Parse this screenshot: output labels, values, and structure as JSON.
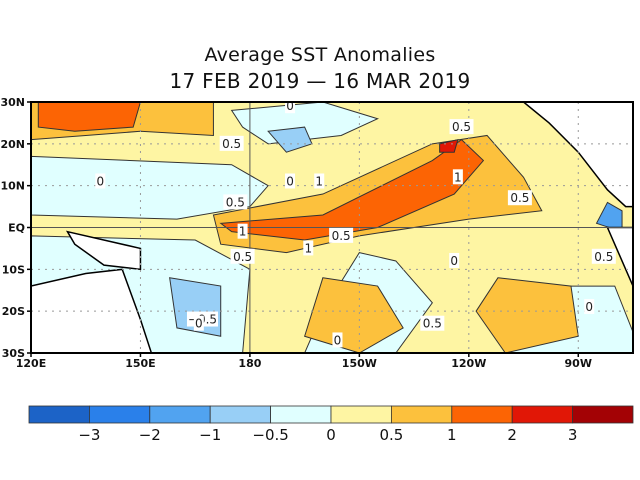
{
  "chart_data": {
    "type": "heatmap",
    "subtype": "filled-contour map",
    "title": "Average SST Anomalies",
    "subtitle": "17 FEB 2019 — 16 MAR 2019",
    "xlabel": "",
    "ylabel": "",
    "x_range": [
      "120E",
      "75W"
    ],
    "y_range": [
      "30S",
      "30N"
    ],
    "x_ticks": [
      "120E",
      "150E",
      "180",
      "150W",
      "120W",
      "90W"
    ],
    "y_ticks": [
      "30N",
      "20N",
      "10N",
      "EQ",
      "10S",
      "20S",
      "30S"
    ],
    "grid": true,
    "colorbar": {
      "placement": "bottom",
      "levels": [
        -3,
        -2,
        -1,
        -0.5,
        0,
        0.5,
        1,
        2,
        3
      ],
      "tick_labels": [
        "−3",
        "−2",
        "−1",
        "−0.5",
        "0",
        "0.5",
        "1",
        "2",
        "3"
      ],
      "colors": [
        "#1c63c7",
        "#2a80ea",
        "#51a3f0",
        "#98cff6",
        "#e0ffff",
        "#fef5a3",
        "#fcc13d",
        "#fc6404",
        "#e11706",
        "#a30205"
      ]
    },
    "contour_labels": [
      {
        "text": "0.5",
        "lon": "175E",
        "lat": "20N"
      },
      {
        "text": "0",
        "lon": "139E",
        "lat": "11N"
      },
      {
        "text": "0",
        "lon": "169W",
        "lat": "29N"
      },
      {
        "text": "0",
        "lon": "169W",
        "lat": "11N"
      },
      {
        "text": "0.5",
        "lon": "122W",
        "lat": "24N"
      },
      {
        "text": "1",
        "lon": "161W",
        "lat": "11N"
      },
      {
        "text": "1",
        "lon": "123W",
        "lat": "12N"
      },
      {
        "text": "0.5",
        "lon": "176E",
        "lat": "6N"
      },
      {
        "text": "0.5",
        "lon": "106W",
        "lat": "7N"
      },
      {
        "text": "1",
        "lon": "178E",
        "lat": "1S"
      },
      {
        "text": "0.5",
        "lon": "178E",
        "lat": "7S"
      },
      {
        "text": "1",
        "lon": "164W",
        "lat": "5S"
      },
      {
        "text": "0.5",
        "lon": "155W",
        "lat": "2S"
      },
      {
        "text": "0",
        "lon": "124W",
        "lat": "8S"
      },
      {
        "text": "0.5",
        "lon": "83W",
        "lat": "7S"
      },
      {
        "text": "−0.5",
        "lon": "167E",
        "lat": "22S"
      },
      {
        "text": "0",
        "lon": "166E",
        "lat": "23S"
      },
      {
        "text": "0.5",
        "lon": "130W",
        "lat": "23S"
      },
      {
        "text": "0",
        "lon": "156W",
        "lat": "27S"
      },
      {
        "text": "0",
        "lon": "87W",
        "lat": "19S"
      }
    ],
    "approximate_regions_note": "Hand-traced approximations of the shaded anomaly regions, not read from underlying gridded data.",
    "approximate_regions": [
      {
        "bin": 6,
        "desc": "warm NW Pacific 25-30N",
        "lonlat": [
          [
            120,
            30
          ],
          [
            170,
            30
          ],
          [
            170,
            22
          ],
          [
            150,
            23
          ],
          [
            135,
            22
          ],
          [
            120,
            21
          ]
        ]
      },
      {
        "bin": 7,
        "desc": "strong warm NW corner",
        "lonlat": [
          [
            122,
            30
          ],
          [
            150,
            30
          ],
          [
            148,
            24
          ],
          [
            132,
            23
          ],
          [
            122,
            24
          ]
        ]
      },
      {
        "bin": 6,
        "desc": "warm equatorial band",
        "lonlat": [
          [
            170,
            3
          ],
          [
            200,
            8
          ],
          [
            230,
            20
          ],
          [
            245,
            22
          ],
          [
            255,
            12
          ],
          [
            260,
            4
          ],
          [
            240,
            2
          ],
          [
            210,
            -2
          ],
          [
            190,
            -6
          ],
          [
            172,
            -4
          ]
        ]
      },
      {
        "bin": 7,
        "desc": "strong equatorial core",
        "lonlat": [
          [
            172,
            1
          ],
          [
            200,
            3
          ],
          [
            230,
            16
          ],
          [
            238,
            21
          ],
          [
            244,
            16
          ],
          [
            236,
            8
          ],
          [
            215,
            0
          ],
          [
            195,
            -3
          ],
          [
            175,
            -1
          ]
        ]
      },
      {
        "bin": 8,
        "desc": "hot spot 20N 125W",
        "lonlat": [
          [
            232,
            20
          ],
          [
            237,
            21
          ],
          [
            236,
            18
          ],
          [
            232,
            18
          ]
        ]
      },
      {
        "bin": 3,
        "desc": "cool area near 10N 165W",
        "lonlat": [
          [
            185,
            23
          ],
          [
            195,
            24
          ],
          [
            197,
            20
          ],
          [
            190,
            18
          ]
        ]
      },
      {
        "bin": 3,
        "desc": "cool area 20S 165E",
        "lonlat": [
          [
            158,
            -12
          ],
          [
            172,
            -14
          ],
          [
            172,
            -26
          ],
          [
            160,
            -24
          ]
        ]
      },
      {
        "bin": 2,
        "desc": "cold core near Central America",
        "lonlat": [
          [
            275,
            1
          ],
          [
            282,
            -1
          ],
          [
            282,
            4
          ],
          [
            278,
            6
          ]
        ]
      }
    ]
  }
}
